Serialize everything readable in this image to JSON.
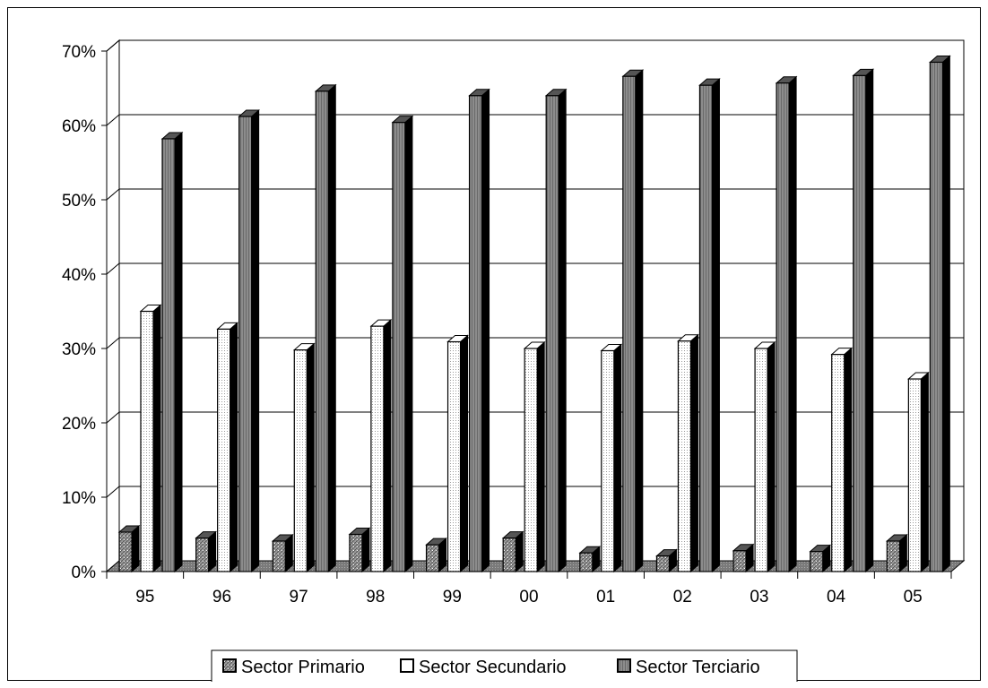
{
  "chart_data": {
    "type": "bar",
    "title": "",
    "xlabel": "",
    "ylabel": "",
    "categories": [
      "95",
      "96",
      "97",
      "98",
      "99",
      "00",
      "01",
      "02",
      "03",
      "04",
      "05"
    ],
    "series": [
      {
        "name": "Sector Primario",
        "values": [
          5.3,
          4.5,
          4.1,
          5.0,
          3.6,
          4.5,
          2.5,
          2.1,
          2.8,
          2.7,
          4.1
        ]
      },
      {
        "name": "Sector Secundario",
        "values": [
          35.0,
          32.6,
          29.8,
          33.0,
          30.9,
          30.0,
          29.7,
          31.0,
          30.0,
          29.2,
          25.9
        ]
      },
      {
        "name": "Sector Terciario",
        "values": [
          58.2,
          61.2,
          64.6,
          60.4,
          64.0,
          64.0,
          66.6,
          65.4,
          65.7,
          66.7,
          68.5
        ]
      }
    ],
    "y_ticks": [
      "0%",
      "10%",
      "20%",
      "30%",
      "40%",
      "50%",
      "60%",
      "70%"
    ],
    "ylim": [
      0,
      70
    ],
    "grid": true,
    "legend_position": "bottom",
    "colors": {
      "primario": "#8a8a8a",
      "secundario": "#ffffff",
      "terciario": "#7f7f7f",
      "bar_side": "#000000",
      "floor": "#808080"
    }
  }
}
